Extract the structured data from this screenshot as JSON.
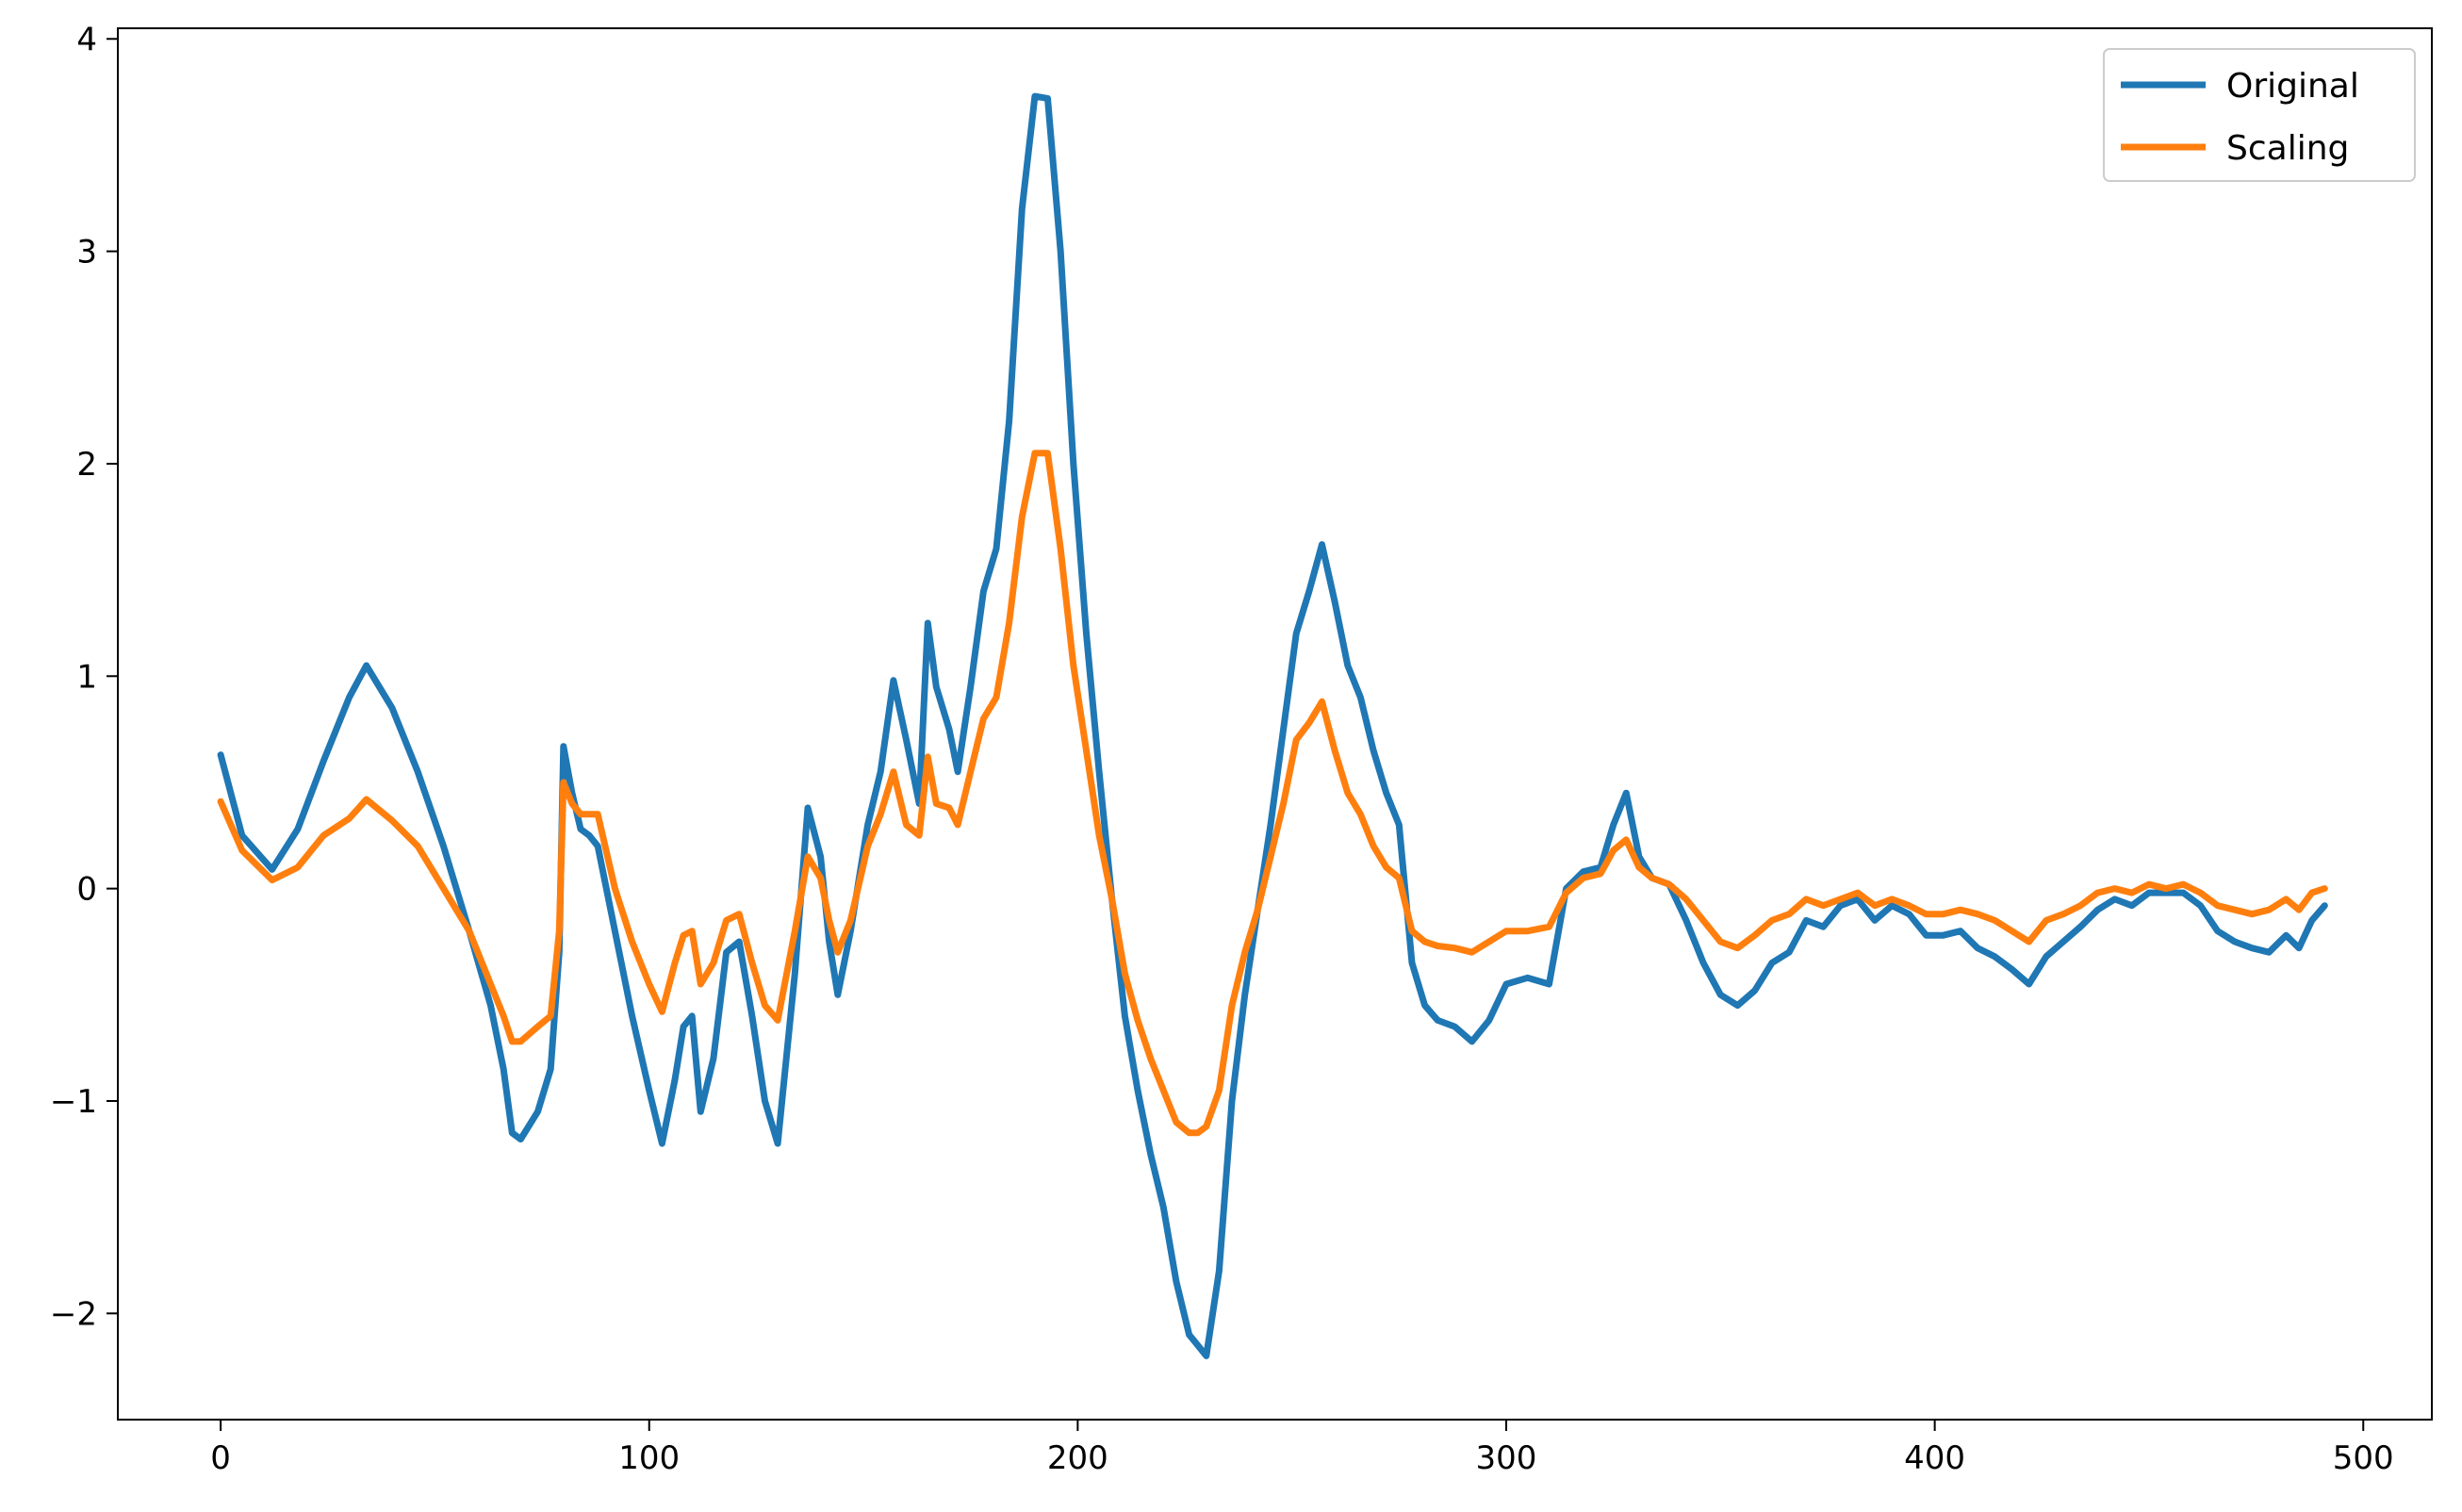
{
  "chart_data": {
    "type": "line",
    "title": "",
    "xlabel": "",
    "ylabel": "",
    "xlim": [
      -24,
      516
    ],
    "ylim": [
      -2.5,
      4.05
    ],
    "xticks": [
      0,
      100,
      200,
      300,
      400,
      500
    ],
    "xtick_labels": [
      "0",
      "100",
      "200",
      "300",
      "400",
      "500"
    ],
    "yticks": [
      -2,
      -1,
      0,
      1,
      2,
      3,
      4
    ],
    "ytick_labels": [
      "−2",
      "−1",
      "0",
      "1",
      "2",
      "3",
      "4"
    ],
    "grid": false,
    "legend_position": "top-right",
    "series": [
      {
        "name": "Original",
        "color": "#1f77b4",
        "x": [
          0,
          5,
          12,
          18,
          24,
          30,
          34,
          40,
          46,
          52,
          58,
          63,
          66,
          68,
          70,
          74,
          77,
          79,
          80,
          82,
          84,
          86,
          88,
          92,
          96,
          100,
          103,
          106,
          108,
          110,
          112,
          115,
          118,
          121,
          124,
          127,
          130,
          134,
          137,
          140,
          142,
          144,
          147,
          151,
          154,
          157,
          160,
          163,
          165,
          167,
          170,
          172,
          175,
          178,
          181,
          184,
          187,
          190,
          193,
          196,
          199,
          202,
          205,
          208,
          211,
          214,
          217,
          220,
          223,
          226,
          228,
          230,
          233,
          236,
          239,
          242,
          245,
          248,
          251,
          254,
          257,
          260,
          263,
          266,
          269,
          272,
          275,
          278,
          281,
          284,
          288,
          292,
          296,
          300,
          305,
          310,
          314,
          318,
          322,
          325,
          328,
          331,
          334,
          338,
          342,
          346,
          350,
          354,
          358,
          362,
          366,
          370,
          374,
          378,
          382,
          386,
          390,
          394,
          398,
          402,
          406,
          410,
          414,
          418,
          422,
          426,
          430,
          434,
          438,
          442,
          446,
          450,
          454,
          458,
          462,
          466,
          470,
          474,
          478,
          482,
          485,
          488,
          491
        ],
        "values": [
          0.63,
          0.25,
          0.09,
          0.28,
          0.6,
          0.9,
          1.05,
          0.85,
          0.55,
          0.2,
          -0.2,
          -0.55,
          -0.85,
          -1.15,
          -1.18,
          -1.05,
          -0.85,
          -0.3,
          0.67,
          0.45,
          0.28,
          0.25,
          0.2,
          -0.2,
          -0.6,
          -0.95,
          -1.2,
          -0.9,
          -0.65,
          -0.6,
          -1.05,
          -0.8,
          -0.3,
          -0.25,
          -0.6,
          -1.0,
          -1.2,
          -0.4,
          0.38,
          0.15,
          -0.25,
          -0.5,
          -0.2,
          0.3,
          0.55,
          0.98,
          0.7,
          0.4,
          1.25,
          0.95,
          0.75,
          0.55,
          0.95,
          1.4,
          1.6,
          2.2,
          3.2,
          3.73,
          3.72,
          3.0,
          2.0,
          1.2,
          0.55,
          -0.05,
          -0.6,
          -0.95,
          -1.25,
          -1.5,
          -1.85,
          -2.1,
          -2.15,
          -2.2,
          -1.8,
          -1.0,
          -0.5,
          -0.1,
          0.3,
          0.75,
          1.2,
          1.4,
          1.62,
          1.35,
          1.05,
          0.9,
          0.65,
          0.45,
          0.3,
          -0.35,
          -0.55,
          -0.62,
          -0.65,
          -0.72,
          -0.62,
          -0.45,
          -0.42,
          -0.45,
          0.0,
          0.08,
          0.1,
          0.3,
          0.45,
          0.15,
          0.05,
          0.02,
          -0.15,
          -0.35,
          -0.5,
          -0.55,
          -0.48,
          -0.35,
          -0.3,
          -0.15,
          -0.18,
          -0.08,
          -0.05,
          -0.15,
          -0.08,
          -0.12,
          -0.22,
          -0.22,
          -0.2,
          -0.28,
          -0.32,
          -0.38,
          -0.45,
          -0.32,
          -0.25,
          -0.18,
          -0.1,
          -0.05,
          -0.08,
          -0.02,
          -0.02,
          -0.02,
          -0.08,
          -0.2,
          -0.25,
          -0.28,
          -0.3,
          -0.22,
          -0.28,
          -0.15,
          -0.08
        ]
      },
      {
        "name": "Scaling",
        "color": "#ff7f0e",
        "x": [
          0,
          5,
          12,
          18,
          24,
          30,
          34,
          40,
          46,
          52,
          58,
          63,
          66,
          68,
          70,
          74,
          77,
          79,
          80,
          82,
          84,
          86,
          88,
          92,
          96,
          100,
          103,
          106,
          108,
          110,
          112,
          115,
          118,
          121,
          124,
          127,
          130,
          134,
          137,
          140,
          142,
          144,
          147,
          151,
          154,
          157,
          160,
          163,
          165,
          167,
          170,
          172,
          175,
          178,
          181,
          184,
          187,
          190,
          193,
          196,
          199,
          202,
          205,
          208,
          211,
          214,
          217,
          220,
          223,
          226,
          228,
          230,
          233,
          236,
          239,
          242,
          245,
          248,
          251,
          254,
          257,
          260,
          263,
          266,
          269,
          272,
          275,
          278,
          281,
          284,
          288,
          292,
          296,
          300,
          305,
          310,
          314,
          318,
          322,
          325,
          328,
          331,
          334,
          338,
          342,
          346,
          350,
          354,
          358,
          362,
          366,
          370,
          374,
          378,
          382,
          386,
          390,
          394,
          398,
          402,
          406,
          410,
          414,
          418,
          422,
          426,
          430,
          434,
          438,
          442,
          446,
          450,
          454,
          458,
          462,
          466,
          470,
          474,
          478,
          482,
          485,
          488,
          491
        ],
        "values": [
          0.41,
          0.18,
          0.04,
          0.1,
          0.25,
          0.33,
          0.42,
          0.32,
          0.2,
          0.0,
          -0.2,
          -0.45,
          -0.6,
          -0.72,
          -0.72,
          -0.65,
          -0.6,
          -0.2,
          0.5,
          0.4,
          0.35,
          0.35,
          0.35,
          0.0,
          -0.25,
          -0.45,
          -0.58,
          -0.35,
          -0.22,
          -0.2,
          -0.45,
          -0.35,
          -0.15,
          -0.12,
          -0.35,
          -0.55,
          -0.62,
          -0.2,
          0.15,
          0.05,
          -0.15,
          -0.3,
          -0.15,
          0.2,
          0.35,
          0.55,
          0.3,
          0.25,
          0.62,
          0.4,
          0.38,
          0.3,
          0.55,
          0.8,
          0.9,
          1.25,
          1.75,
          2.05,
          2.05,
          1.6,
          1.05,
          0.65,
          0.25,
          -0.05,
          -0.4,
          -0.62,
          -0.8,
          -0.95,
          -1.1,
          -1.15,
          -1.15,
          -1.12,
          -0.95,
          -0.55,
          -0.3,
          -0.1,
          0.15,
          0.4,
          0.7,
          0.78,
          0.88,
          0.65,
          0.45,
          0.35,
          0.2,
          0.1,
          0.05,
          -0.2,
          -0.25,
          -0.27,
          -0.28,
          -0.3,
          -0.25,
          -0.2,
          -0.2,
          -0.18,
          -0.02,
          0.05,
          0.07,
          0.18,
          0.23,
          0.1,
          0.05,
          0.02,
          -0.05,
          -0.15,
          -0.25,
          -0.28,
          -0.22,
          -0.15,
          -0.12,
          -0.05,
          -0.08,
          -0.05,
          -0.02,
          -0.08,
          -0.05,
          -0.08,
          -0.12,
          -0.12,
          -0.1,
          -0.12,
          -0.15,
          -0.2,
          -0.25,
          -0.15,
          -0.12,
          -0.08,
          -0.02,
          0.0,
          -0.02,
          0.02,
          0.0,
          0.02,
          -0.02,
          -0.08,
          -0.1,
          -0.12,
          -0.1,
          -0.05,
          -0.1,
          -0.02,
          0.0
        ]
      }
    ]
  }
}
